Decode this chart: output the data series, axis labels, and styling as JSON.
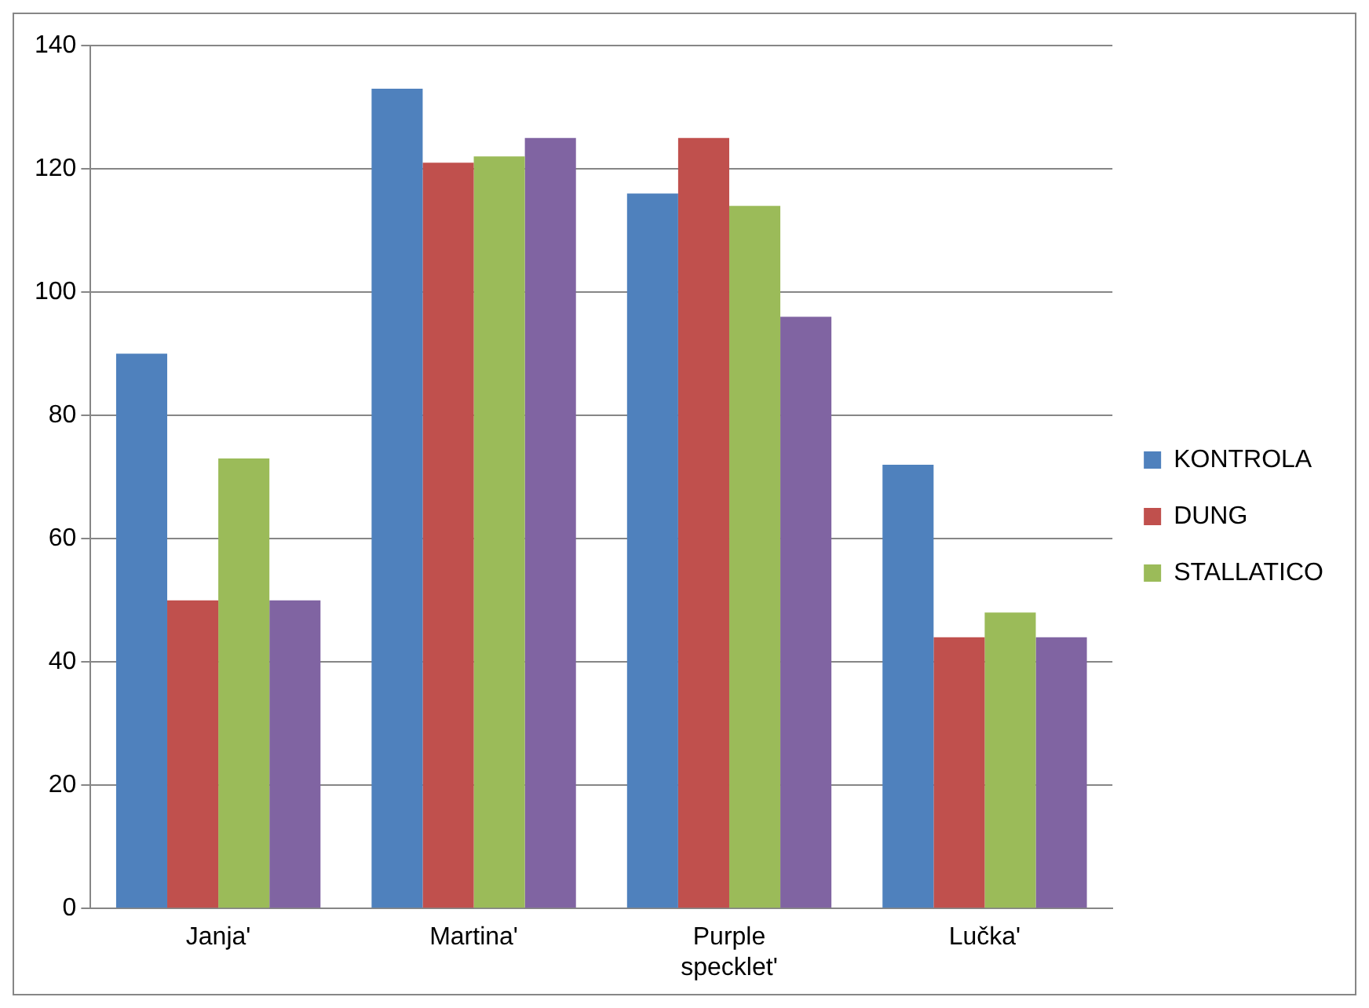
{
  "chart_data": {
    "type": "bar",
    "categories": [
      "Janja'",
      "Martina'",
      "Purple specklet'",
      "Lučka'"
    ],
    "series": [
      {
        "name": "KONTROLA",
        "color": "#4f81bd",
        "values": [
          90,
          133,
          116,
          72
        ]
      },
      {
        "name": "DUNG",
        "color": "#c0504d",
        "values": [
          50,
          121,
          125,
          44
        ]
      },
      {
        "name": "STALLATICO",
        "color": "#9bbb59",
        "values": [
          73,
          122,
          114,
          48
        ]
      },
      {
        "color": "#8064a2",
        "values": [
          50,
          125,
          96,
          44
        ]
      }
    ],
    "ylim": [
      0,
      140
    ],
    "yticks": [
      0,
      20,
      40,
      60,
      80,
      100,
      120,
      140
    ],
    "grid": "y",
    "legend": "right"
  }
}
